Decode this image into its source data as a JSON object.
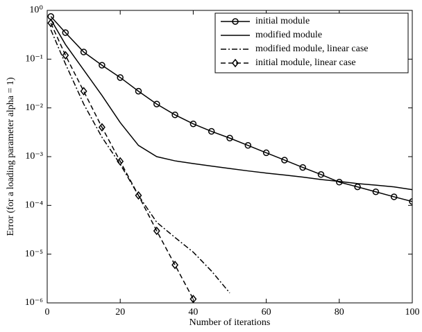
{
  "chart_data": {
    "type": "line",
    "xlabel": "Number of iterations",
    "ylabel": "Error (for a loading parameter alpha = 1)",
    "x": [
      1,
      5,
      10,
      15,
      20,
      25,
      30,
      35,
      40,
      45,
      50,
      55,
      60,
      65,
      70,
      75,
      80,
      85,
      90,
      95,
      100
    ],
    "series": [
      {
        "name": "initial module",
        "color": "#000000",
        "style": "solid",
        "marker": "circle",
        "values": [
          0.75,
          0.35,
          0.14,
          0.075,
          0.042,
          0.022,
          0.012,
          0.0072,
          0.0047,
          0.0033,
          0.0024,
          0.0017,
          0.0012,
          0.00085,
          0.0006,
          0.00043,
          0.0003,
          0.00024,
          0.00019,
          0.00015,
          0.00012
        ]
      },
      {
        "name": "modified module",
        "color": "#000000",
        "style": "solid",
        "marker": "none",
        "values": [
          0.65,
          0.2,
          0.06,
          0.018,
          0.005,
          0.0017,
          0.001,
          0.00082,
          0.00072,
          0.00064,
          0.00057,
          0.00051,
          0.00046,
          0.00042,
          0.00038,
          0.00034,
          0.00031,
          0.00028,
          0.00026,
          0.00024,
          0.00021
        ]
      },
      {
        "name": "modified module, linear case",
        "color": "#000000",
        "style": "dashdot",
        "marker": "none",
        "values": [
          0.4,
          0.08,
          0.012,
          0.0025,
          0.0007,
          0.00016,
          4.5e-05,
          2.2e-05,
          1.1e-05,
          4.5e-06,
          1.6e-06,
          null,
          null,
          null,
          null,
          null,
          null,
          null,
          null,
          null,
          null
        ]
      },
      {
        "name": "initial module, linear case",
        "color": "#000000",
        "style": "dashed",
        "marker": "diamond",
        "values": [
          0.55,
          0.12,
          0.022,
          0.004,
          0.0008,
          0.00016,
          3e-05,
          6e-06,
          1.2e-06,
          null,
          null,
          null,
          null,
          null,
          null,
          null,
          null,
          null,
          null,
          null,
          null
        ]
      }
    ],
    "xlim": [
      0,
      100
    ],
    "xticks": [
      0,
      20,
      40,
      60,
      80,
      100
    ],
    "ylim": [
      1e-06,
      1
    ],
    "log_y": true,
    "yticks": [
      {
        "value": 1e-06,
        "label": "10⁻⁶"
      },
      {
        "value": 1e-05,
        "label": "10⁻⁵"
      },
      {
        "value": 0.0001,
        "label": "10⁻⁴"
      },
      {
        "value": 0.001,
        "label": "10⁻³"
      },
      {
        "value": 0.01,
        "label": "10⁻²"
      },
      {
        "value": 0.1,
        "label": "10⁻¹"
      },
      {
        "value": 1,
        "label": "10⁰"
      }
    ],
    "legend": "upper right",
    "grid": false
  }
}
